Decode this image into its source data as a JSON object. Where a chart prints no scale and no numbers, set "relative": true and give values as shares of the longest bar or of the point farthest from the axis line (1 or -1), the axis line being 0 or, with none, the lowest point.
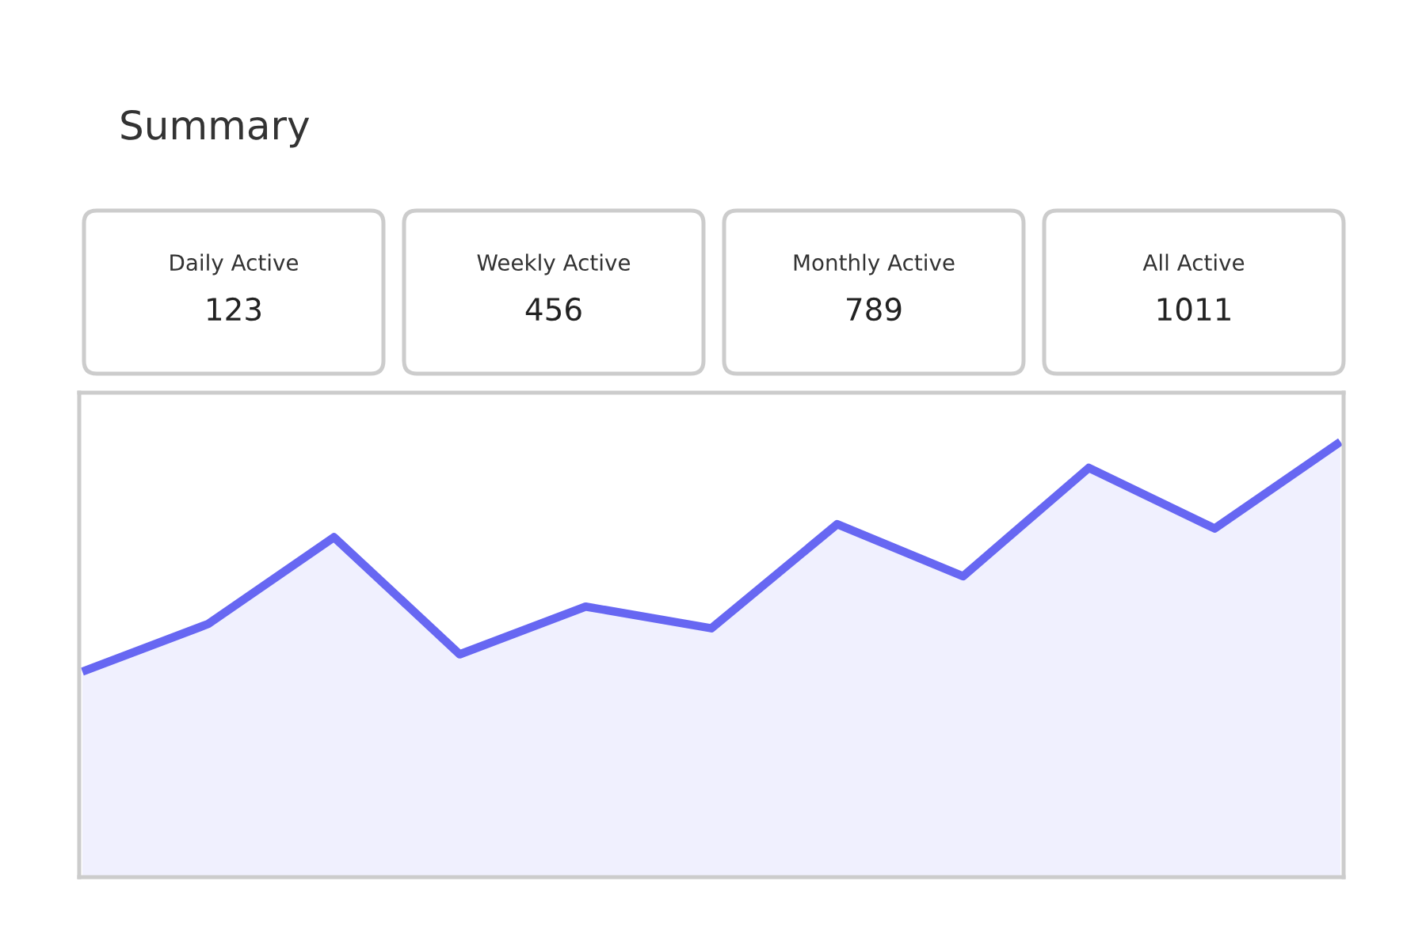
{
  "chart_data": [
    {
      "type": "other",
      "title": "Summary",
      "categories": [
        "Daily Active",
        "Weekly Active",
        "Monthly Active",
        "All Active"
      ],
      "values": [
        123,
        456,
        789,
        1011
      ],
      "data_labels": true
    },
    {
      "type": "area",
      "relative": true,
      "categories": [
        null,
        null,
        null,
        null,
        null,
        null,
        null,
        null,
        null,
        null,
        null
      ],
      "values": [
        0.47,
        0.58,
        0.78,
        0.51,
        0.62,
        0.57,
        0.81,
        0.69,
        0.94,
        0.8,
        1
      ],
      "color": "#6767f2"
    }
  ]
}
